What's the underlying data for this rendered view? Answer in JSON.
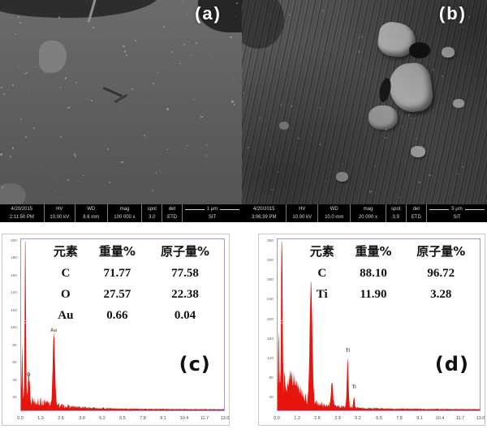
{
  "panels": {
    "a": {
      "label": "(a)",
      "bar": {
        "date": "4/20/2015",
        "time": "2:11:50 PM",
        "hv_label": "HV",
        "hv": "10.00 kV",
        "wd_label": "WD",
        "wd": "8.6 mm",
        "mag_label": "mag",
        "mag": "100 000 x",
        "spot_label": "spot",
        "spot": "3.0",
        "det_label": "det",
        "det": "ETD",
        "scale": "1 μm",
        "facility": "SIT"
      }
    },
    "b": {
      "label": "(b)",
      "bar": {
        "date": "4/20/2015",
        "time": "3:06:39 PM",
        "hv_label": "HV",
        "hv": "10.00 kV",
        "wd_label": "WD",
        "wd": "10.0 mm",
        "mag_label": "mag",
        "mag": "20 000 x",
        "spot_label": "spot",
        "spot": "3.9",
        "det_label": "det",
        "det": "ETD",
        "scale": "5 μm",
        "facility": "SIT"
      }
    },
    "c": {
      "label": "(c)"
    },
    "d": {
      "label": "(d)"
    }
  },
  "chart_data": [
    {
      "type": "area",
      "panel": "c",
      "title": "",
      "xlabel": "",
      "ylabel": "",
      "xmax": 13,
      "x_ticks": [
        "0.0",
        "1.3",
        "2.6",
        "3.9",
        "5.2",
        "6.5",
        "7.8",
        "9.1",
        "10.4",
        "11.7",
        "13.0"
      ],
      "y_ticks": [
        "200",
        "180",
        "160",
        "140",
        "120",
        "100",
        "80",
        "60",
        "40",
        "20"
      ],
      "color": "#e8150d",
      "seed": 13,
      "noise": {
        "amp": 0.13,
        "decay": 1.7,
        "base": 0.012
      },
      "peaks": [
        {
          "x": 0.07,
          "h": 0.35,
          "w": 0.03,
          "element": ""
        },
        {
          "x": 0.27,
          "h": 1.0,
          "w": 0.035,
          "element": "C"
        },
        {
          "x": 0.5,
          "h": 0.16,
          "w": 0.05,
          "element": "O"
        },
        {
          "x": 2.1,
          "h": 0.42,
          "w": 0.07,
          "element": "Au"
        }
      ],
      "annotations": [
        {
          "text": "C",
          "x": 0.28,
          "y": 0.5,
          "color": "#ffb3ab"
        },
        {
          "text": "O",
          "x": 0.48,
          "y": 0.19,
          "color": "#555555"
        },
        {
          "text": "Au",
          "x": 2.08,
          "y": 0.45,
          "color": "#8a4a3a"
        }
      ],
      "table": {
        "headers": [
          "元素",
          "重量%",
          "原子量%"
        ],
        "rows": [
          [
            "C",
            "71.77",
            "77.58"
          ],
          [
            "O",
            "27.57",
            "22.38"
          ],
          [
            "Au",
            "0.66",
            "0.04"
          ]
        ]
      }
    },
    {
      "type": "area",
      "panel": "d",
      "title": "",
      "xlabel": "",
      "ylabel": "",
      "xmax": 13,
      "x_ticks": [
        "0.0",
        "1.3",
        "2.6",
        "3.9",
        "5.2",
        "6.5",
        "7.8",
        "9.1",
        "10.4",
        "11.7",
        "13.0"
      ],
      "y_ticks": [
        "360",
        "320",
        "280",
        "240",
        "200",
        "160",
        "120",
        "80",
        "40"
      ],
      "color": "#e8150d",
      "seed": 29,
      "noise": {
        "amp": 0.26,
        "decay": 1.5,
        "base": 0.015
      },
      "peaks": [
        {
          "x": 0.07,
          "h": 0.35,
          "w": 0.03,
          "element": ""
        },
        {
          "x": 0.27,
          "h": 1.0,
          "w": 0.04,
          "element": "C"
        },
        {
          "x": 1.0,
          "h": 0.1,
          "w": 0.35,
          "element": ""
        },
        {
          "x": 2.15,
          "h": 0.72,
          "w": 0.08,
          "element": ""
        },
        {
          "x": 3.5,
          "h": 0.15,
          "w": 0.06,
          "element": ""
        },
        {
          "x": 4.51,
          "h": 0.3,
          "w": 0.05,
          "element": "Ti"
        },
        {
          "x": 4.92,
          "h": 0.07,
          "w": 0.04,
          "element": "Ti"
        }
      ],
      "annotations": [
        {
          "text": "C",
          "x": 0.28,
          "y": 0.5,
          "color": "#ffb3ab"
        },
        {
          "text": "Ti",
          "x": 4.51,
          "y": 0.33,
          "color": "#555555"
        },
        {
          "text": "Ti",
          "x": 4.92,
          "y": 0.12,
          "color": "#555555"
        }
      ],
      "table": {
        "headers": [
          "元素",
          "重量%",
          "原子量%"
        ],
        "rows": [
          [
            "C",
            "88.10",
            "96.72"
          ],
          [
            "Ti",
            "11.90",
            "3.28"
          ]
        ]
      }
    }
  ]
}
